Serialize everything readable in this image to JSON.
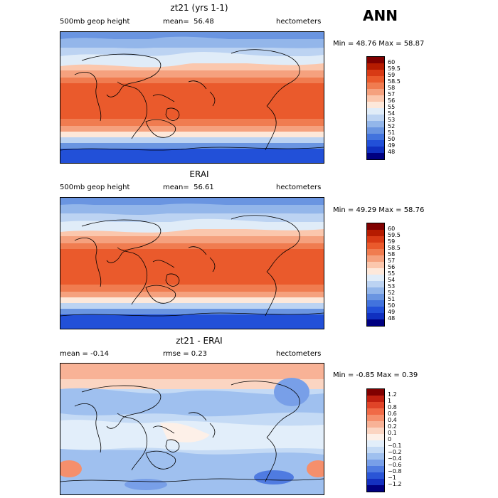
{
  "season": "ANN",
  "panels": [
    {
      "title": "zt21 (yrs 1-1)",
      "left": "500mb geop height",
      "mean_label": "mean=",
      "mean": "56.48",
      "units": "hectometers",
      "minmax": "Min =  48.76 Max =  58.87",
      "colorbar": {
        "labels": [
          "60",
          "59.5",
          "59",
          "58.5",
          "58",
          "57",
          "56",
          "55",
          "54",
          "53",
          "52",
          "51",
          "50",
          "49",
          "48"
        ],
        "colors": [
          "#800000",
          "#b51b00",
          "#d83a15",
          "#ea5a2c",
          "#f07c50",
          "#f5a17e",
          "#fbc7ad",
          "#fde8da",
          "#e0ecf8",
          "#bcd3f2",
          "#93b6ea",
          "#6a95e1",
          "#4273dd",
          "#2250d8",
          "#1030c0",
          "#000080"
        ]
      }
    },
    {
      "title": "ERAI",
      "left": "500mb geop height",
      "mean_label": "mean=",
      "mean": "56.61",
      "units": "hectometers",
      "minmax": "Min =  49.29 Max =  58.76",
      "colorbar": {
        "labels": [
          "60",
          "59.5",
          "59",
          "58.5",
          "58",
          "57",
          "56",
          "55",
          "54",
          "53",
          "52",
          "51",
          "50",
          "49",
          "48"
        ],
        "colors": [
          "#800000",
          "#b51b00",
          "#d83a15",
          "#ea5a2c",
          "#f07c50",
          "#f5a17e",
          "#fbc7ad",
          "#fde8da",
          "#e0ecf8",
          "#bcd3f2",
          "#93b6ea",
          "#6a95e1",
          "#4273dd",
          "#2250d8",
          "#1030c0",
          "#000080"
        ]
      }
    },
    {
      "title": "zt21 - ERAI",
      "left": "mean =   -0.14",
      "mid": "rmse =    0.23",
      "units": "hectometers",
      "minmax": "Min =  -0.85 Max =   0.39",
      "colorbar": {
        "labels": [
          "1.2",
          "1",
          "0.8",
          "0.6",
          "0.4",
          "0.2",
          "0.1",
          "0",
          "−0.1",
          "−0.2",
          "−0.4",
          "−0.6",
          "−0.8",
          "−1",
          "−1.2"
        ],
        "colors": [
          "#800000",
          "#c02010",
          "#e04428",
          "#f06a46",
          "#f58f6c",
          "#f8b296",
          "#fbd5c2",
          "#fdf0e8",
          "#e2eefa",
          "#c4daf5",
          "#9fc0ef",
          "#789fe8",
          "#4f7be1",
          "#2a55d6",
          "#1430c0",
          "#000080"
        ]
      }
    }
  ]
}
